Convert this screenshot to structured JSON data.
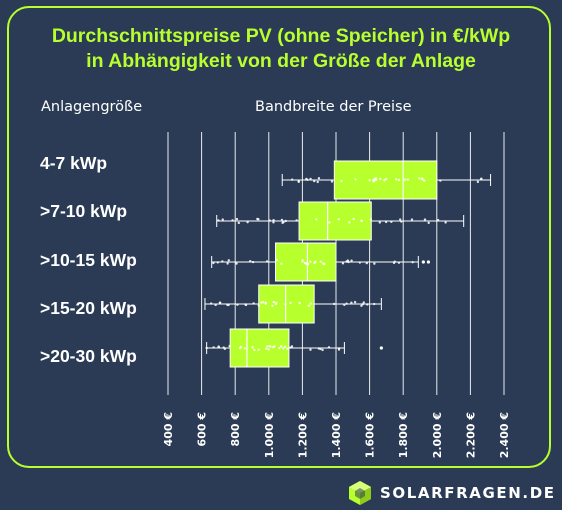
{
  "title_line1": "Durchschnittspreise PV (ohne Speicher) in €/kWp",
  "title_line2": "in Abhängigkeit von der Größe der Anlage",
  "col_header_left": "Anlagengröße",
  "col_header_right": "Bandbreite der Preise",
  "brand": "SOLARFRAGEN.DE",
  "colors": {
    "background": "#2b3b55",
    "accent": "#b8ff2e",
    "text": "#ffffff",
    "grid": "#ffffff"
  },
  "chart_data": {
    "type": "boxplot",
    "orientation": "horizontal",
    "xlim": [
      400,
      2400
    ],
    "x_ticks": [
      400,
      600,
      800,
      1000,
      1200,
      1400,
      1600,
      1800,
      2000,
      2200,
      2400
    ],
    "x_tick_labels": [
      "400 €",
      "600 €",
      "800 €",
      "1.000 €",
      "1.200 €",
      "1.400 €",
      "1.600 €",
      "1.800 €",
      "2.000 €",
      "2.200 €",
      "2.400 €"
    ],
    "grid": true,
    "categories": [
      "4-7 kWp",
      ">7-10 kWp",
      ">10-15 kWp",
      ">15-20 kWp",
      ">20-30 kWp"
    ],
    "boxes": [
      {
        "min": 1080,
        "q1": 1390,
        "median": 1800,
        "q3": 2000,
        "max": 2320,
        "outliers": []
      },
      {
        "min": 690,
        "q1": 1180,
        "median": 1350,
        "q3": 1610,
        "max": 2160,
        "outliers": []
      },
      {
        "min": 660,
        "q1": 1040,
        "median": 1230,
        "q3": 1400,
        "max": 1890,
        "outliers": [
          1920,
          1950
        ]
      },
      {
        "min": 620,
        "q1": 940,
        "median": 1100,
        "q3": 1270,
        "max": 1670,
        "outliers": []
      },
      {
        "min": 630,
        "q1": 770,
        "median": 870,
        "q3": 1120,
        "max": 1450,
        "outliers": [
          1670
        ]
      }
    ]
  }
}
